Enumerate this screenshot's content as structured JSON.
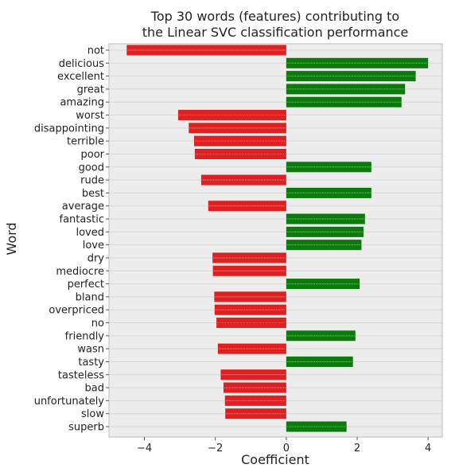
{
  "chart_data": {
    "type": "bar",
    "orientation": "horizontal",
    "title": [
      "Top 30 words (features) contributing to",
      "the Linear SVC classification performance"
    ],
    "xlabel": "Coefficient",
    "ylabel": "Word",
    "xlim": [
      -5.0,
      4.4
    ],
    "xticks": [
      -4,
      -2,
      0,
      2,
      4
    ],
    "xtick_labels": [
      "−4",
      "−2",
      "0",
      "2",
      "4"
    ],
    "grid": true,
    "colors": {
      "positive": "#0b7a0b",
      "negative": "#e02020",
      "plot_background": "#ececec",
      "grid": "#d8d8d8"
    },
    "categories": [
      "not",
      "delicious",
      "excellent",
      "great",
      "amazing",
      "worst",
      "disappointing",
      "terrible",
      "poor",
      "good",
      "rude",
      "best",
      "average",
      "fantastic",
      "loved",
      "love",
      "dry",
      "mediocre",
      "perfect",
      "bland",
      "overpriced",
      "no",
      "friendly",
      "wasn",
      "tasty",
      "tasteless",
      "bad",
      "unfortunately",
      "slow",
      "superb"
    ],
    "values": [
      -4.5,
      4.0,
      3.65,
      3.35,
      3.25,
      -3.05,
      -2.75,
      -2.6,
      -2.58,
      2.4,
      -2.4,
      2.4,
      -2.2,
      2.22,
      2.18,
      2.12,
      -2.08,
      -2.07,
      2.07,
      -2.03,
      -2.02,
      -1.97,
      1.95,
      -1.93,
      1.88,
      -1.85,
      -1.77,
      -1.73,
      -1.72,
      1.7
    ]
  }
}
